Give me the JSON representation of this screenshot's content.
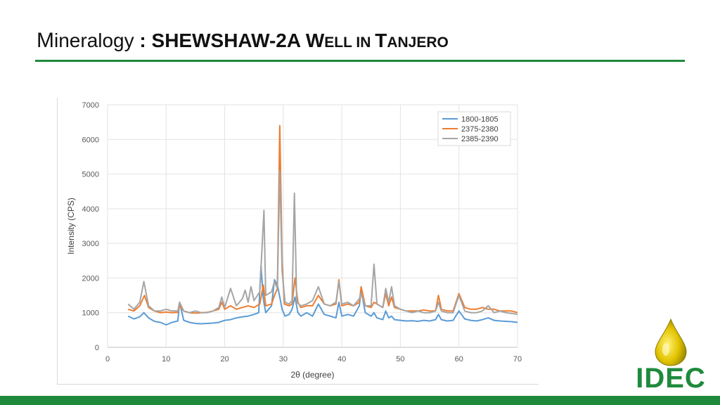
{
  "slide": {
    "title_first_letter": "M",
    "title_rest": "ineralogy",
    "title_separator": " : ",
    "title_part1": "SHEWSHAW-2A ",
    "title_w": "W",
    "title_ell_in": "ELL IN ",
    "title_t": "T",
    "title_anjero": "ANJERO"
  },
  "logo": {
    "text": "IDEC",
    "icon": "oil-drop-pumpjack-logo"
  },
  "colors": {
    "accent_green": "#1f8a3c",
    "series_blue": "#5b9bd5",
    "series_orange": "#ed7d31",
    "series_gray": "#a5a5a5"
  },
  "chart_data": {
    "type": "line",
    "title": "",
    "xlabel": "2θ (degree)",
    "ylabel": "Intensity (CPS)",
    "xlim": [
      0,
      70
    ],
    "ylim": [
      0,
      7000
    ],
    "xticks": [
      0,
      10,
      20,
      30,
      40,
      50,
      60,
      70
    ],
    "yticks": [
      0,
      1000,
      2000,
      3000,
      4000,
      5000,
      6000,
      7000
    ],
    "grid": true,
    "legend_position": "top-right",
    "series": [
      {
        "name": "1800-1805",
        "color": "#5b9bd5",
        "x": [
          3.5,
          4.5,
          5.5,
          6.2,
          7,
          8,
          9,
          10,
          11,
          12,
          12.3,
          13,
          14,
          15,
          16,
          17,
          18,
          19,
          20,
          21,
          22,
          23,
          24,
          25,
          25.8,
          26.2,
          26.6,
          27,
          27.5,
          28,
          28.5,
          29,
          29.4,
          29.8,
          30.3,
          31,
          31.5,
          32,
          32.5,
          33,
          34,
          35,
          36,
          37,
          38,
          39,
          39.5,
          40,
          41,
          42,
          43,
          43.3,
          44,
          45,
          45.5,
          46,
          47,
          47.5,
          48,
          48.5,
          49,
          50,
          51,
          52,
          53,
          54,
          55,
          56,
          56.5,
          57,
          58,
          59,
          60,
          61,
          62,
          63,
          64,
          65,
          66,
          67,
          68,
          69,
          70
        ],
        "y": [
          900,
          820,
          880,
          1000,
          850,
          750,
          720,
          650,
          720,
          760,
          1300,
          780,
          720,
          690,
          680,
          690,
          700,
          720,
          780,
          800,
          850,
          880,
          900,
          950,
          1000,
          2350,
          1400,
          1000,
          1100,
          1200,
          1950,
          1800,
          1450,
          1100,
          900,
          950,
          1100,
          1450,
          1000,
          900,
          1000,
          900,
          1250,
          950,
          900,
          850,
          1300,
          900,
          950,
          900,
          1200,
          1650,
          1000,
          900,
          1000,
          850,
          800,
          1050,
          850,
          900,
          800,
          780,
          760,
          770,
          750,
          780,
          760,
          800,
          950,
          800,
          760,
          780,
          1050,
          820,
          780,
          760,
          800,
          850,
          780,
          760,
          750,
          740,
          720
        ]
      },
      {
        "name": "2375-2380",
        "color": "#ed7d31",
        "x": [
          3.5,
          4.5,
          5.5,
          6.3,
          7,
          8,
          9,
          10,
          11,
          12,
          12.3,
          13,
          14,
          15,
          16,
          17,
          18,
          19,
          19.5,
          20,
          21,
          22,
          23,
          24,
          25,
          26,
          26.6,
          27,
          28,
          28.5,
          29,
          29.4,
          29.8,
          30.2,
          31,
          31.5,
          32,
          32.5,
          33,
          34,
          35,
          36,
          37,
          38,
          39,
          39.5,
          40,
          41,
          42,
          43,
          43.3,
          44,
          45,
          45.5,
          46,
          47,
          47.5,
          48,
          48.5,
          49,
          50,
          51,
          52,
          53,
          54,
          55,
          56,
          56.5,
          57,
          58,
          59,
          60,
          61,
          62,
          63,
          64,
          65,
          66,
          67,
          68,
          69,
          70
        ],
        "y": [
          1100,
          1050,
          1200,
          1500,
          1150,
          1050,
          1000,
          1020,
          1000,
          1010,
          1200,
          1050,
          1000,
          990,
          1000,
          1010,
          1050,
          1100,
          1300,
          1100,
          1200,
          1100,
          1150,
          1200,
          1150,
          1250,
          1800,
          1200,
          1250,
          1500,
          1700,
          6400,
          2500,
          1250,
          1200,
          1250,
          2000,
          1300,
          1150,
          1200,
          1200,
          1500,
          1250,
          1200,
          1250,
          1950,
          1200,
          1250,
          1200,
          1300,
          1750,
          1200,
          1150,
          1300,
          1250,
          1150,
          1550,
          1200,
          1450,
          1150,
          1100,
          1050,
          1050,
          1050,
          1080,
          1050,
          1050,
          1500,
          1100,
          1050,
          1050,
          1550,
          1150,
          1100,
          1100,
          1150,
          1100,
          1100,
          1050,
          1050,
          1050,
          1000
        ]
      },
      {
        "name": "2385-2390",
        "color": "#a5a5a5",
        "x": [
          3.5,
          4.5,
          5.5,
          6.2,
          7,
          8,
          9,
          10,
          11,
          12,
          12.3,
          13,
          14,
          15,
          16,
          17,
          18,
          19,
          19.5,
          20,
          21,
          22,
          23,
          23.5,
          24,
          24.5,
          25,
          26,
          26.2,
          26.7,
          27,
          28,
          28.5,
          29,
          29.4,
          29.8,
          30.3,
          31,
          31.5,
          31.9,
          32.3,
          33,
          34,
          35,
          36,
          37,
          38,
          39,
          39.5,
          40,
          41,
          42,
          43,
          43.3,
          44,
          45,
          45.5,
          46,
          47,
          47.5,
          48,
          48.5,
          49,
          50,
          51,
          52,
          53,
          54,
          55,
          56,
          56.5,
          57,
          58,
          59,
          60,
          61,
          62,
          63,
          64,
          65,
          66,
          67,
          68,
          69,
          70
        ],
        "y": [
          1250,
          1100,
          1300,
          1900,
          1200,
          1050,
          1050,
          1100,
          1050,
          1050,
          1300,
          1050,
          1000,
          1050,
          1000,
          1000,
          1050,
          1150,
          1450,
          1150,
          1700,
          1200,
          1400,
          1650,
          1300,
          1750,
          1350,
          1600,
          2300,
          3950,
          1500,
          1600,
          1900,
          1700,
          5100,
          2200,
          1300,
          1250,
          1350,
          4450,
          1300,
          1200,
          1250,
          1350,
          1750,
          1250,
          1200,
          1300,
          1900,
          1250,
          1300,
          1200,
          1400,
          1550,
          1200,
          1200,
          2400,
          1250,
          1150,
          1700,
          1300,
          1750,
          1200,
          1100,
          1050,
          1000,
          1050,
          1000,
          1000,
          1050,
          1300,
          1050,
          1000,
          1000,
          1500,
          1050,
          1000,
          1000,
          1050,
          1200,
          1000,
          1050,
          1000,
          980,
          950
        ]
      }
    ]
  }
}
